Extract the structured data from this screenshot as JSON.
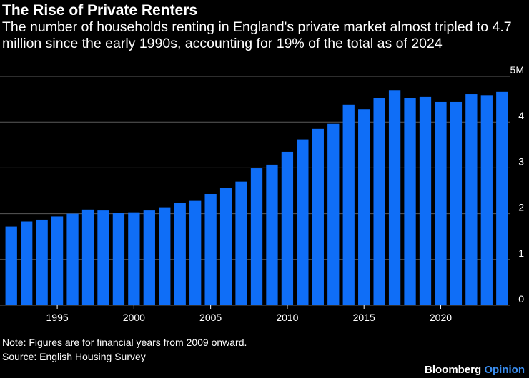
{
  "header": {
    "title": "The Rise of Private Renters",
    "subtitle": "The number of households renting in England's private market almost tripled to 4.7 million since the early 1990s, accounting for 19% of the total as of 2024"
  },
  "footer": {
    "note": "Note: Figures are for financial years from 2009 onward.",
    "source": "Source: English Housing Survey",
    "brand_primary": "Bloomberg",
    "brand_secondary": "Opinion"
  },
  "colors": {
    "bar": "#0f6ef7",
    "gridline": "#5a5a5a",
    "background": "#000000"
  },
  "chart_data": {
    "type": "bar",
    "categories": [
      "1992",
      "1993",
      "1994",
      "1995",
      "1996",
      "1997",
      "1998",
      "1999",
      "2000",
      "2001",
      "2002",
      "2003",
      "2004",
      "2005",
      "2006",
      "2007",
      "2008",
      "2009",
      "2010",
      "2011",
      "2012",
      "2013",
      "2014",
      "2015",
      "2016",
      "2017",
      "2018",
      "2019",
      "2020",
      "2021",
      "2022",
      "2023",
      "2024"
    ],
    "values": [
      1.72,
      1.83,
      1.87,
      1.94,
      2.0,
      2.09,
      2.07,
      2.01,
      2.03,
      2.07,
      2.14,
      2.24,
      2.28,
      2.43,
      2.57,
      2.7,
      2.99,
      3.07,
      3.35,
      3.62,
      3.85,
      3.96,
      4.38,
      4.28,
      4.53,
      4.7,
      4.53,
      4.55,
      4.44,
      4.44,
      4.61,
      4.59,
      4.66
    ],
    "title": "The Rise of Private Renters",
    "xlabel": "",
    "ylabel": "",
    "ylim": [
      0,
      5
    ],
    "y_ticks": [
      0,
      1,
      2,
      3,
      4,
      5
    ],
    "y_tick_labels": [
      "0",
      "1",
      "2",
      "3",
      "4",
      "5M"
    ],
    "x_ticks": [
      "1995",
      "2000",
      "2005",
      "2010",
      "2015",
      "2020"
    ],
    "y_axis_side": "right",
    "grid": true
  }
}
